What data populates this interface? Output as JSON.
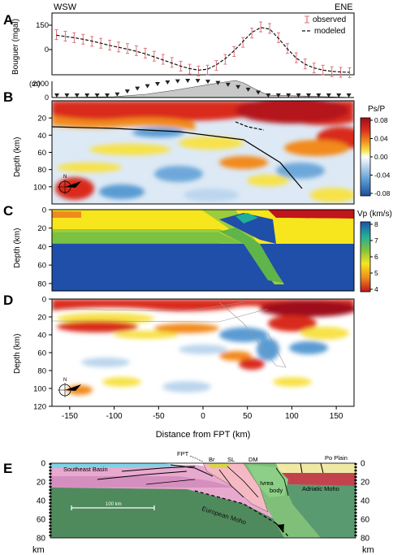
{
  "colors": {
    "red": "#c0151b",
    "orange": "#f08a1c",
    "yellow": "#f7e51e",
    "lightgreen": "#9ccc3c",
    "green": "#5fb44a",
    "teal": "#1fae9a",
    "blue": "#1f4fa8",
    "lightblue": "#bcd6ee",
    "topo": "#c8c8c8",
    "obs": "#e0707a"
  },
  "panelA": {
    "letter": "A",
    "wsw": "WSW",
    "ene": "ENE",
    "ylabel": "Bouguer (mgal)",
    "yticks": [
      "150",
      "0"
    ],
    "legend_observed": "observed",
    "legend_modeled": "modeled",
    "chart_data": {
      "type": "line",
      "x": [
        -165,
        -155,
        -145,
        -135,
        -125,
        -115,
        -105,
        -95,
        -85,
        -75,
        -65,
        -55,
        -45,
        -35,
        -25,
        -15,
        -5,
        5,
        15,
        25,
        35,
        45,
        55,
        65,
        75,
        85,
        95,
        105,
        115,
        125,
        135,
        145,
        155,
        165
      ],
      "series": [
        {
          "name": "observed",
          "values": [
            90,
            85,
            80,
            75,
            68,
            62,
            56,
            50,
            45,
            38,
            30,
            20,
            10,
            0,
            -12,
            -22,
            -28,
            -25,
            -10,
            10,
            35,
            65,
            95,
            115,
            110,
            80,
            45,
            15,
            -5,
            -18,
            -25,
            -30,
            -32,
            -33
          ]
        },
        {
          "name": "modeled",
          "values": [
            88,
            84,
            80,
            75,
            69,
            62,
            55,
            49,
            43,
            36,
            28,
            18,
            8,
            -2,
            -12,
            -20,
            -25,
            -22,
            -8,
            12,
            38,
            68,
            97,
            113,
            108,
            78,
            44,
            14,
            -6,
            -18,
            -25,
            -29,
            -31,
            -32
          ]
        }
      ],
      "ylim": [
        -40,
        160
      ]
    }
  },
  "panelB": {
    "letter": "B",
    "topo_label": "(m)",
    "topo_ticks": [
      "2000",
      "0"
    ],
    "ylabel": "Depth (km)",
    "yticks": [
      "20",
      "40",
      "60",
      "80",
      "100"
    ],
    "cbar_title": "Ps/P",
    "cbar_ticks": [
      "0.08",
      "0.04",
      "0.00",
      "-0.04",
      "-0.08"
    ],
    "north": "N"
  },
  "panelC": {
    "letter": "C",
    "ylabel": "Depth (km)",
    "yticks": [
      "0",
      "20",
      "40",
      "60",
      "80"
    ],
    "cbar_title": "Vp (km/s)",
    "cbar_ticks": [
      "8",
      "7",
      "6",
      "5",
      "4"
    ]
  },
  "panelD": {
    "letter": "D",
    "ylabel": "Depth (km)",
    "yticks": [
      "0",
      "20",
      "40",
      "60",
      "80",
      "100",
      "120"
    ],
    "xticks": [
      "-150",
      "-100",
      "-50",
      "0",
      "50",
      "100",
      "150"
    ],
    "xlabel": "Distance from FPT (km)",
    "north": "N"
  },
  "panelE": {
    "letter": "E",
    "southeast": "Southeast Basin",
    "poplain": "Po Plain",
    "fpt": "FPT",
    "br": "Br",
    "sl": "SL",
    "dm": "DM",
    "ivrea": "Ivrea",
    "body": "body",
    "adriatic": "Adriatic Moho",
    "european": "European Moho",
    "scale": "100 km",
    "depth_ticks": [
      "0",
      "20",
      "40",
      "60",
      "80"
    ],
    "km": "km"
  }
}
